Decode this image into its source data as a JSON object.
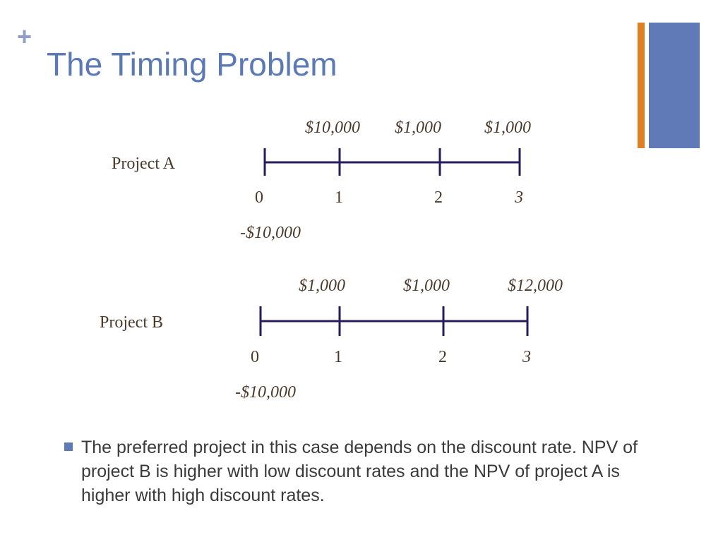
{
  "slide": {
    "plus": "+",
    "title": "The Timing Problem",
    "accent_colors": {
      "orange": "#e07f24",
      "blue": "#6079b7"
    }
  },
  "projects": [
    {
      "label": "Project A",
      "inflows": [
        "$10,000",
        "$1,000",
        "$1,000"
      ],
      "periods": [
        "0",
        "1",
        "2",
        "3"
      ],
      "outflow": "-$10,000"
    },
    {
      "label": "Project B",
      "inflows": [
        "$1,000",
        "$1,000",
        "$12,000"
      ],
      "periods": [
        "0",
        "1",
        "2",
        "3"
      ],
      "outflow": "-$10,000"
    }
  ],
  "bullet": {
    "text": "The preferred project in this case depends on the discount rate. NPV of project B is higher with low discount rates and the NPV of project A is higher with high discount rates."
  }
}
